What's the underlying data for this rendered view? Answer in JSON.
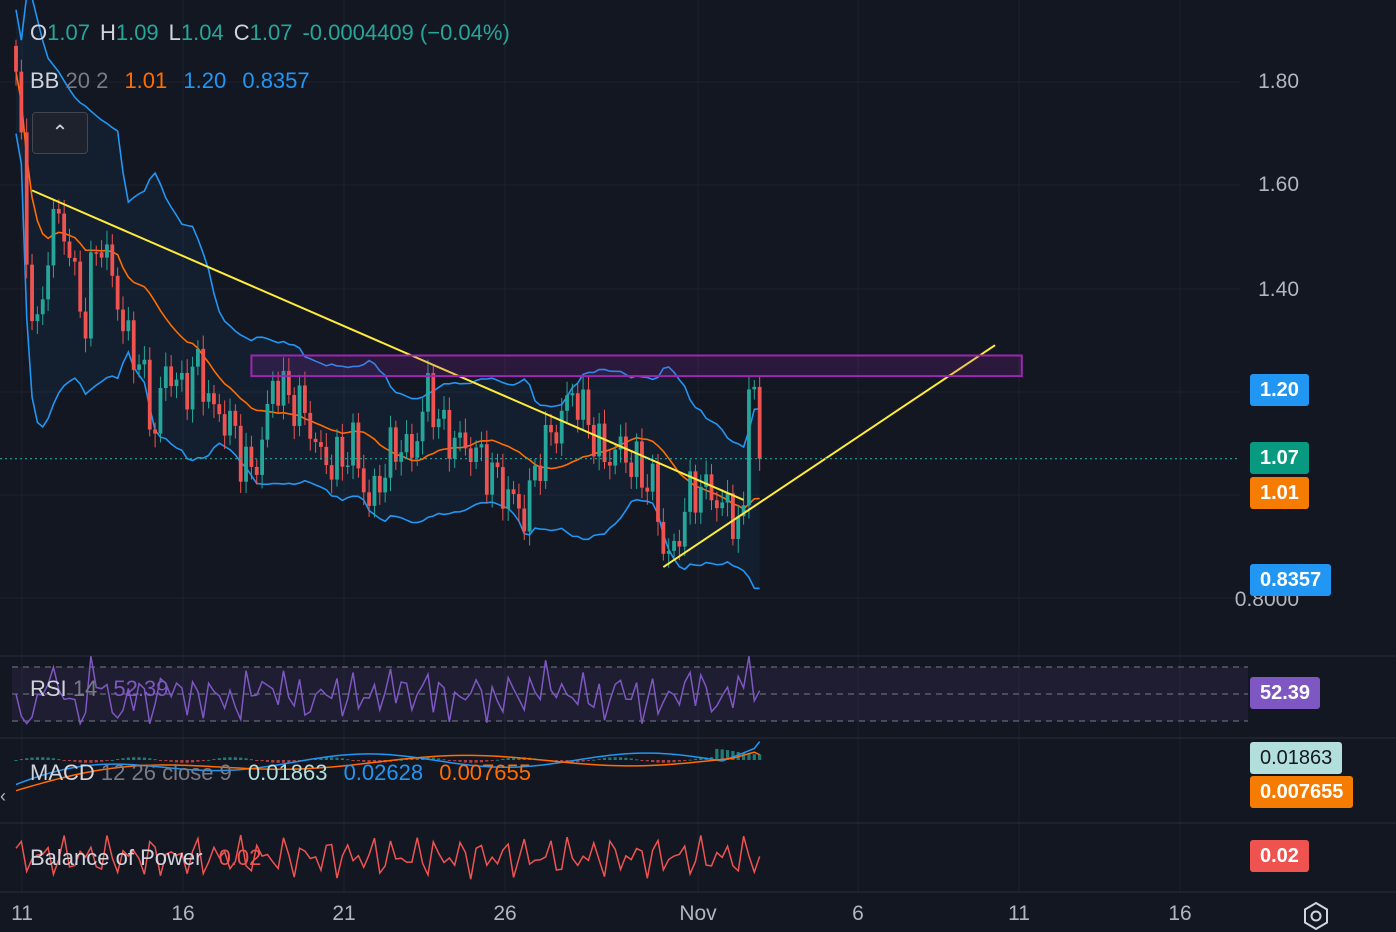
{
  "header": {
    "open_key": "O",
    "open": "1.07",
    "high_key": "H",
    "high": "1.09",
    "low_key": "L",
    "low": "1.04",
    "close_key": "C",
    "close": "1.07",
    "change": "-0.0004409 (−0.04%)"
  },
  "bb_legend": {
    "name": "BB",
    "params": "20 2",
    "basis": "1.01",
    "upper": "1.20",
    "lower": "0.8357"
  },
  "rsi_legend": {
    "name": "RSI",
    "params": "14",
    "value": "52.39"
  },
  "macd_legend": {
    "name": "MACD",
    "params": "12 26 close 9",
    "hist": "0.01863",
    "macd": "0.02628",
    "signal": "0.007655"
  },
  "bop_legend": {
    "name": "Balance of Power",
    "value": "0.02"
  },
  "collapse_icon": "chevron-up-icon",
  "price_axis": [
    "1.80",
    "1.60",
    "1.40",
    "0.8000"
  ],
  "badges": {
    "bb_upper": "1.20",
    "last_price": "1.07",
    "bb_basis": "1.01",
    "bb_lower": "0.8357",
    "rsi": "52.39",
    "macd_hist": "0.01863",
    "macd_signal": "0.007655",
    "bop": "0.02"
  },
  "time_axis": [
    "11",
    "16",
    "21",
    "26",
    "Nov",
    "6",
    "11",
    "16"
  ],
  "colors": {
    "up": "#26a69a",
    "down": "#ef5350",
    "bb_band": "#2196f3",
    "bb_basis": "#ff6d00",
    "rsi": "#7e57c2",
    "trendline": "#ffeb3b",
    "resistance_box": "#9c27b0",
    "bop": "#ef5350",
    "macd_badge": "#b2dfdb",
    "background": "#131722"
  },
  "chart_data": {
    "type": "candlestick",
    "x_range": [
      "Oct 11",
      "Nov 3"
    ],
    "ylim": [
      0.8,
      1.84
    ],
    "y_ticks": [
      0.8,
      1.4,
      1.6,
      1.8
    ],
    "last_price": 1.07,
    "bollinger": {
      "period": 20,
      "mult": 2,
      "basis": 1.01,
      "upper": 1.2,
      "lower": 0.8357
    },
    "segments": [
      [
        0,
        1.82
      ],
      [
        1,
        1.68
      ],
      [
        2,
        1.45
      ],
      [
        4,
        1.3
      ],
      [
        6,
        1.48
      ],
      [
        8,
        1.55
      ],
      [
        11,
        1.42
      ],
      [
        13,
        1.33
      ],
      [
        15,
        1.5
      ],
      [
        18,
        1.43
      ],
      [
        20,
        1.32
      ],
      [
        23,
        1.26
      ],
      [
        26,
        1.12
      ],
      [
        28,
        1.25
      ],
      [
        31,
        1.2
      ],
      [
        34,
        1.25
      ],
      [
        37,
        1.16
      ],
      [
        40,
        1.14
      ],
      [
        42,
        1.08
      ],
      [
        44,
        1.04
      ],
      [
        46,
        1.1
      ],
      [
        48,
        1.22
      ],
      [
        51,
        1.19
      ],
      [
        54,
        1.16
      ],
      [
        57,
        1.07
      ],
      [
        60,
        1.06
      ],
      [
        63,
        1.1
      ],
      [
        66,
        0.98
      ],
      [
        68,
        1.03
      ],
      [
        71,
        1.1
      ],
      [
        74,
        1.08
      ],
      [
        77,
        1.2
      ],
      [
        80,
        1.12
      ],
      [
        83,
        1.1
      ],
      [
        86,
        1.08
      ],
      [
        89,
        1.04
      ],
      [
        92,
        1.0
      ],
      [
        95,
        0.96
      ],
      [
        98,
        1.08
      ],
      [
        101,
        1.13
      ],
      [
        104,
        1.2
      ],
      [
        107,
        1.14
      ],
      [
        110,
        1.07
      ],
      [
        113,
        1.09
      ],
      [
        116,
        1.05
      ],
      [
        119,
        1.02
      ],
      [
        121,
        0.9
      ],
      [
        123,
        0.88
      ],
      [
        125,
        0.98
      ],
      [
        128,
        1.02
      ],
      [
        131,
        0.99
      ],
      [
        134,
        0.96
      ],
      [
        136,
        0.94
      ],
      [
        137,
        1.25
      ],
      [
        138,
        1.2
      ],
      [
        139,
        1.07
      ]
    ],
    "rsi": {
      "period": 14,
      "value": 52.39,
      "bands": [
        30,
        50,
        70
      ]
    },
    "macd": {
      "fast": 12,
      "slow": 26,
      "source": "close",
      "signal_period": 9,
      "histogram": 0.01863,
      "macd": 0.02628,
      "signal": 0.007655
    },
    "balance_of_power": {
      "value": 0.02
    },
    "drawings": {
      "descending_trendline": [
        [
          3,
          1.59
        ],
        [
          136,
          0.99
        ]
      ],
      "ascending_trendline": [
        [
          121,
          0.86
        ],
        [
          183,
          1.29
        ]
      ],
      "resistance_zone": [
        [
          44,
          1.23
        ],
        [
          188,
          1.27
        ]
      ]
    }
  }
}
